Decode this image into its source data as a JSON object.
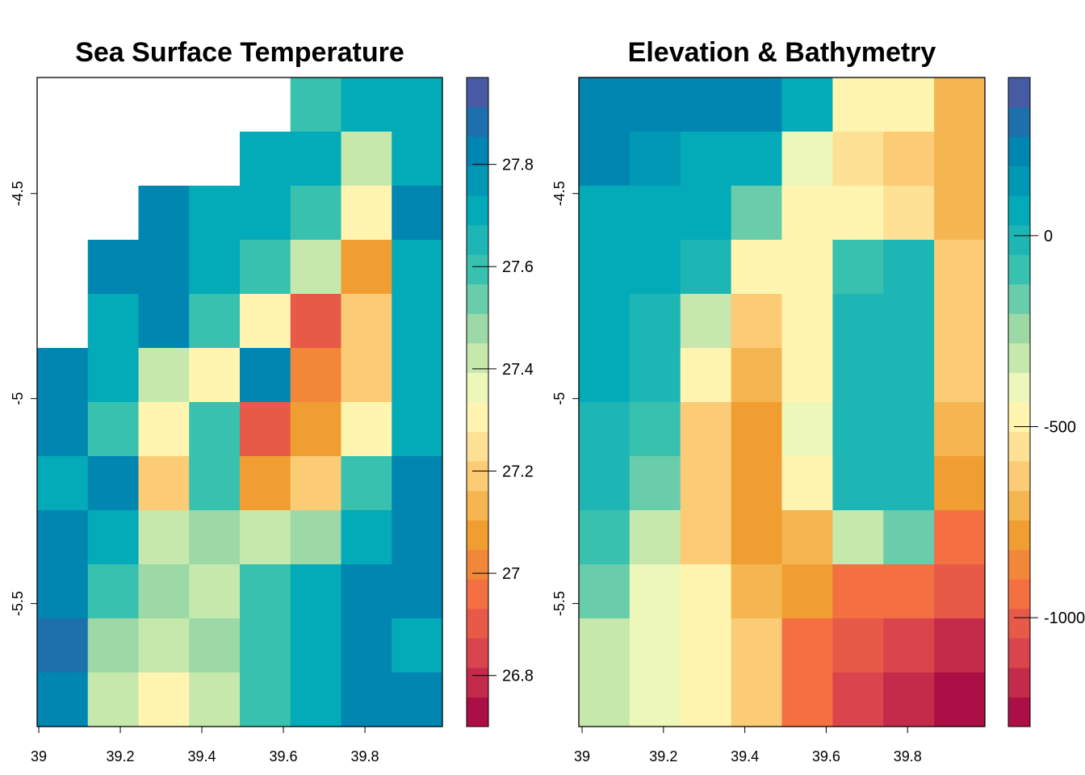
{
  "chart_data": [
    {
      "type": "raster",
      "title": "Sea Surface Temperature",
      "xlim": [
        38.996,
        39.99
      ],
      "xticks": [
        39,
        39.2,
        39.4,
        39.6,
        39.8
      ],
      "ylim": [
        -5.8,
        -4.217
      ],
      "yticks": [
        -4.5,
        -5,
        -5.5
      ],
      "colorbar_lim": [
        26.7,
        27.97
      ],
      "colorbar_ticks": [
        26.8,
        27,
        27.2,
        27.4,
        27.6,
        27.8
      ],
      "colors": [
        "#9E0142",
        "#D53E4F",
        "#F46D43",
        "#F0A030",
        "#FDD380",
        "#FFFFBF",
        "#ABDDA4",
        "#3CC2B0",
        "#00A9B8",
        "#0080B0",
        "#5E4FA2"
      ],
      "values": [
        [
          null,
          null,
          null,
          null,
          null,
          27.6,
          27.7,
          27.7
        ],
        [
          null,
          null,
          null,
          null,
          27.7,
          27.7,
          27.4,
          27.7
        ],
        [
          null,
          null,
          27.8,
          27.7,
          27.7,
          27.6,
          27.3,
          27.8
        ],
        [
          null,
          27.8,
          27.8,
          27.7,
          27.6,
          27.4,
          27.1,
          27.7
        ],
        [
          null,
          27.7,
          27.8,
          27.6,
          27.3,
          26.9,
          27.2,
          27.7
        ],
        [
          27.8,
          27.7,
          27.4,
          27.3,
          27.8,
          27.0,
          27.2,
          27.7
        ],
        [
          27.8,
          27.6,
          27.3,
          27.6,
          26.9,
          27.1,
          27.3,
          27.7
        ],
        [
          27.7,
          27.8,
          27.2,
          27.6,
          27.1,
          27.2,
          27.6,
          27.8
        ],
        [
          27.8,
          27.7,
          27.4,
          27.5,
          27.4,
          27.5,
          27.7,
          27.8
        ],
        [
          27.8,
          27.6,
          27.5,
          27.4,
          27.6,
          27.7,
          27.8,
          27.8
        ],
        [
          27.9,
          27.5,
          27.4,
          27.5,
          27.6,
          27.7,
          27.8,
          27.7
        ],
        [
          27.8,
          27.4,
          27.3,
          27.4,
          27.6,
          27.7,
          27.8,
          27.8
        ]
      ]
    },
    {
      "type": "raster",
      "title": "Elevation & Bathymetry",
      "xlim": [
        38.992,
        39.99
      ],
      "xticks": [
        39,
        39.2,
        39.4,
        39.6,
        39.8
      ],
      "ylim": [
        -5.8,
        -4.217
      ],
      "yticks": [
        -4.5,
        -5,
        -5.5
      ],
      "colorbar_lim": [
        -1285,
        414
      ],
      "colorbar_ticks": [
        0,
        -500,
        -1000
      ],
      "colors": [
        "#9E0142",
        "#D53E4F",
        "#F46D43",
        "#F0A030",
        "#FDD380",
        "#FFFFBF",
        "#ABDDA4",
        "#3CC2B0",
        "#00A9B8",
        "#0080B0",
        "#5E4FA2"
      ],
      "values": [
        [
          200,
          200,
          200,
          200,
          100,
          -500,
          -500,
          -700
        ],
        [
          200,
          150,
          100,
          100,
          -400,
          -550,
          -600,
          -700
        ],
        [
          100,
          100,
          100,
          -200,
          -500,
          -450,
          -550,
          -700
        ],
        [
          100,
          50,
          0,
          -450,
          -500,
          -100,
          0,
          -600
        ],
        [
          50,
          0,
          -300,
          -600,
          -500,
          0,
          0,
          -600
        ],
        [
          50,
          0,
          -500,
          -700,
          -450,
          0,
          0,
          -600
        ],
        [
          0,
          -100,
          -600,
          -750,
          -400,
          0,
          0,
          -700
        ],
        [
          0,
          -200,
          -650,
          -800,
          -500,
          0,
          0,
          -800
        ],
        [
          -100,
          -300,
          -600,
          -800,
          -700,
          -300,
          -200,
          -900
        ],
        [
          -200,
          -400,
          -500,
          -700,
          -800,
          -900,
          -900,
          -1000
        ],
        [
          -300,
          -400,
          -500,
          -600,
          -900,
          -1000,
          -1100,
          -1200
        ],
        [
          -300,
          -400,
          -500,
          -600,
          -900,
          -1100,
          -1200,
          -1250
        ]
      ]
    }
  ]
}
